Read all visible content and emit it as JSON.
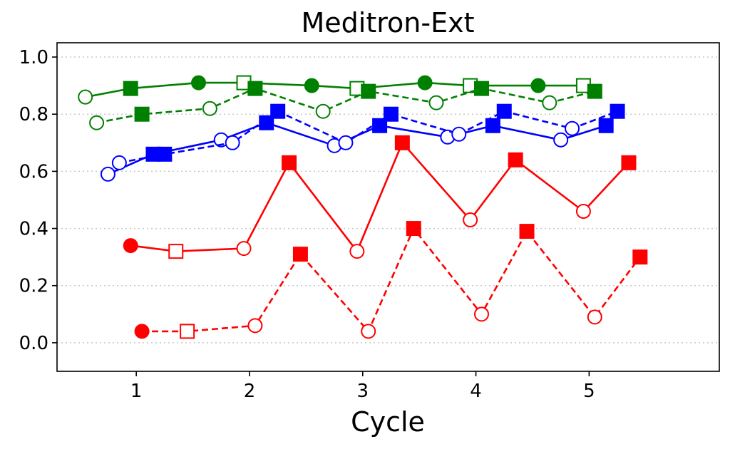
{
  "chart_data": {
    "type": "line",
    "title": "Meditron-Ext",
    "xlabel": "Cycle",
    "ylabel": "",
    "xlim": [
      0.3,
      6.15
    ],
    "ylim": [
      -0.1,
      1.05
    ],
    "xticks": [
      1,
      2,
      3,
      4,
      5
    ],
    "xtick_labels": [
      "1",
      "2",
      "3",
      "4",
      "5"
    ],
    "yticks": [
      0.0,
      0.2,
      0.4,
      0.6,
      0.8,
      1.0
    ],
    "ytick_labels": [
      "0.0",
      "0.2",
      "0.4",
      "0.6",
      "0.8",
      "1.0"
    ],
    "grid": "horizontal dotted",
    "legend": "none",
    "series": [
      {
        "color": "#008000",
        "linestyle": "solid",
        "points": [
          {
            "x": 0.55,
            "y": 0.86,
            "marker": "circle",
            "filled": false
          },
          {
            "x": 0.95,
            "y": 0.89,
            "marker": "square",
            "filled": true
          },
          {
            "x": 1.55,
            "y": 0.91,
            "marker": "circle",
            "filled": true
          },
          {
            "x": 1.95,
            "y": 0.91,
            "marker": "square",
            "filled": false
          },
          {
            "x": 2.55,
            "y": 0.9,
            "marker": "circle",
            "filled": true
          },
          {
            "x": 2.95,
            "y": 0.89,
            "marker": "square",
            "filled": false
          },
          {
            "x": 3.55,
            "y": 0.91,
            "marker": "circle",
            "filled": true
          },
          {
            "x": 3.95,
            "y": 0.9,
            "marker": "square",
            "filled": false
          },
          {
            "x": 4.55,
            "y": 0.9,
            "marker": "circle",
            "filled": true
          },
          {
            "x": 4.95,
            "y": 0.9,
            "marker": "square",
            "filled": false
          }
        ]
      },
      {
        "color": "#008000",
        "linestyle": "dashed",
        "points": [
          {
            "x": 0.65,
            "y": 0.77,
            "marker": "circle",
            "filled": false
          },
          {
            "x": 1.05,
            "y": 0.8,
            "marker": "square",
            "filled": true
          },
          {
            "x": 1.65,
            "y": 0.82,
            "marker": "circle",
            "filled": false
          },
          {
            "x": 2.05,
            "y": 0.89,
            "marker": "square",
            "filled": true
          },
          {
            "x": 2.65,
            "y": 0.81,
            "marker": "circle",
            "filled": false
          },
          {
            "x": 3.05,
            "y": 0.88,
            "marker": "square",
            "filled": true
          },
          {
            "x": 3.65,
            "y": 0.84,
            "marker": "circle",
            "filled": false
          },
          {
            "x": 4.05,
            "y": 0.89,
            "marker": "square",
            "filled": true
          },
          {
            "x": 4.65,
            "y": 0.84,
            "marker": "circle",
            "filled": false
          },
          {
            "x": 5.05,
            "y": 0.88,
            "marker": "square",
            "filled": true
          }
        ]
      },
      {
        "color": "#0000ff",
        "linestyle": "solid",
        "points": [
          {
            "x": 0.75,
            "y": 0.59,
            "marker": "circle",
            "filled": false
          },
          {
            "x": 1.15,
            "y": 0.66,
            "marker": "square",
            "filled": true
          },
          {
            "x": 1.75,
            "y": 0.71,
            "marker": "circle",
            "filled": false
          },
          {
            "x": 2.15,
            "y": 0.77,
            "marker": "square",
            "filled": true
          },
          {
            "x": 2.75,
            "y": 0.69,
            "marker": "circle",
            "filled": false
          },
          {
            "x": 3.15,
            "y": 0.76,
            "marker": "square",
            "filled": true
          },
          {
            "x": 3.75,
            "y": 0.72,
            "marker": "circle",
            "filled": false
          },
          {
            "x": 4.15,
            "y": 0.76,
            "marker": "square",
            "filled": true
          },
          {
            "x": 4.75,
            "y": 0.71,
            "marker": "circle",
            "filled": false
          },
          {
            "x": 5.15,
            "y": 0.76,
            "marker": "square",
            "filled": true
          }
        ]
      },
      {
        "color": "#0000ff",
        "linestyle": "dashed",
        "points": [
          {
            "x": 0.85,
            "y": 0.63,
            "marker": "circle",
            "filled": false
          },
          {
            "x": 1.25,
            "y": 0.66,
            "marker": "square",
            "filled": true
          },
          {
            "x": 1.85,
            "y": 0.7,
            "marker": "circle",
            "filled": false
          },
          {
            "x": 2.25,
            "y": 0.81,
            "marker": "square",
            "filled": true
          },
          {
            "x": 2.85,
            "y": 0.7,
            "marker": "circle",
            "filled": false
          },
          {
            "x": 3.25,
            "y": 0.8,
            "marker": "square",
            "filled": true
          },
          {
            "x": 3.85,
            "y": 0.73,
            "marker": "circle",
            "filled": false
          },
          {
            "x": 4.25,
            "y": 0.81,
            "marker": "square",
            "filled": true
          },
          {
            "x": 4.85,
            "y": 0.75,
            "marker": "circle",
            "filled": false
          },
          {
            "x": 5.25,
            "y": 0.81,
            "marker": "square",
            "filled": true
          }
        ]
      },
      {
        "color": "#ff0000",
        "linestyle": "solid",
        "points": [
          {
            "x": 0.95,
            "y": 0.34,
            "marker": "circle",
            "filled": true
          },
          {
            "x": 1.35,
            "y": 0.32,
            "marker": "square",
            "filled": false
          },
          {
            "x": 1.95,
            "y": 0.33,
            "marker": "circle",
            "filled": false
          },
          {
            "x": 2.35,
            "y": 0.63,
            "marker": "square",
            "filled": true
          },
          {
            "x": 2.95,
            "y": 0.32,
            "marker": "circle",
            "filled": false
          },
          {
            "x": 3.35,
            "y": 0.7,
            "marker": "square",
            "filled": true
          },
          {
            "x": 3.95,
            "y": 0.43,
            "marker": "circle",
            "filled": false
          },
          {
            "x": 4.35,
            "y": 0.64,
            "marker": "square",
            "filled": true
          },
          {
            "x": 4.95,
            "y": 0.46,
            "marker": "circle",
            "filled": false
          },
          {
            "x": 5.35,
            "y": 0.63,
            "marker": "square",
            "filled": true
          }
        ]
      },
      {
        "color": "#ff0000",
        "linestyle": "dashed",
        "points": [
          {
            "x": 1.05,
            "y": 0.04,
            "marker": "circle",
            "filled": true
          },
          {
            "x": 1.45,
            "y": 0.04,
            "marker": "square",
            "filled": false
          },
          {
            "x": 2.05,
            "y": 0.06,
            "marker": "circle",
            "filled": false
          },
          {
            "x": 2.45,
            "y": 0.31,
            "marker": "square",
            "filled": true
          },
          {
            "x": 3.05,
            "y": 0.04,
            "marker": "circle",
            "filled": false
          },
          {
            "x": 3.45,
            "y": 0.4,
            "marker": "square",
            "filled": true
          },
          {
            "x": 4.05,
            "y": 0.1,
            "marker": "circle",
            "filled": false
          },
          {
            "x": 4.45,
            "y": 0.39,
            "marker": "square",
            "filled": true
          },
          {
            "x": 5.05,
            "y": 0.09,
            "marker": "circle",
            "filled": false
          },
          {
            "x": 5.45,
            "y": 0.3,
            "marker": "square",
            "filled": true
          }
        ]
      }
    ]
  }
}
